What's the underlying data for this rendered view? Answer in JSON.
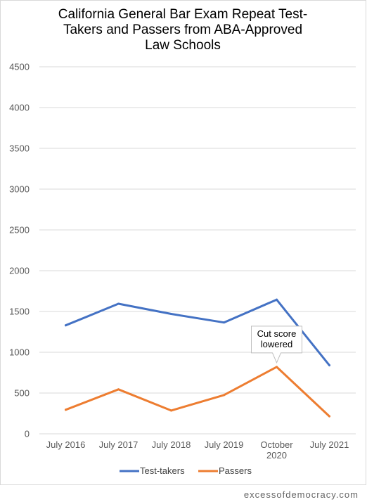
{
  "chart_data": {
    "type": "line",
    "title": "California General Bar Exam Repeat Test-Takers and Passers from ABA-Approved Law Schools",
    "title_lines": [
      "California General Bar Exam Repeat Test-",
      "Takers and Passers from ABA-Approved",
      "Law Schools"
    ],
    "categories": [
      [
        "July 2016"
      ],
      [
        "July 2017"
      ],
      [
        "July 2018"
      ],
      [
        "July 2019"
      ],
      [
        "October",
        "2020"
      ],
      [
        "July 2021"
      ]
    ],
    "series": [
      {
        "name": "Test-takers",
        "color": "#4472C4",
        "values": [
          1330,
          1595,
          1470,
          1365,
          1645,
          840
        ]
      },
      {
        "name": "Passers",
        "color": "#ED7D31",
        "values": [
          295,
          545,
          285,
          475,
          820,
          215
        ]
      }
    ],
    "ylim": [
      0,
      4500
    ],
    "yticks": [
      0,
      500,
      1000,
      1500,
      2000,
      2500,
      3000,
      3500,
      4000,
      4500
    ],
    "grid": true,
    "legend": "bottom",
    "annotation": {
      "lines": [
        "Cut score",
        "lowered"
      ],
      "category_index": 4,
      "series_index": 1
    },
    "xlabel": "",
    "ylabel": ""
  },
  "footer": {
    "text": "excessofdemocracy.com"
  }
}
